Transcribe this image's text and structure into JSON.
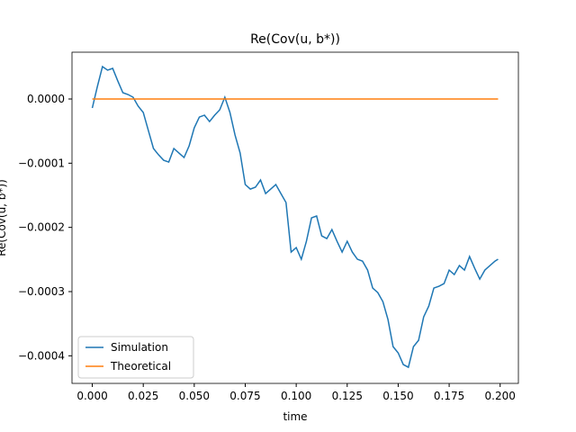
{
  "chart_data": {
    "type": "line",
    "title": "Re(Cov(u, b*))",
    "x_label": "time",
    "y_label": "Re(Cov(u, b*))",
    "xlim": [
      -0.00995,
      0.20895
    ],
    "ylim": [
      -0.000443,
      7.29e-05
    ],
    "xticks": [
      {
        "value": 0,
        "label": "0.000"
      },
      0.025,
      {
        "value": 0.05,
        "label": "0.050"
      },
      0.075,
      {
        "value": 0.1,
        "label": "0.100"
      },
      0.125,
      {
        "value": 0.15,
        "label": "0.150"
      },
      0.175,
      {
        "value": 0.2,
        "label": "0.200"
      }
    ],
    "yticks": [
      {
        "value": 0,
        "label": "0.0000"
      },
      {
        "value": -0.0001,
        "label": "−0.0001"
      },
      {
        "value": -0.0002,
        "label": "−0.0002"
      },
      {
        "value": -0.0003,
        "label": "−0.0003"
      },
      {
        "value": -0.0004,
        "label": "−0.0004"
      }
    ],
    "legend": "lower left",
    "series": [
      {
        "name": "Simulation",
        "color": "#1f77b4",
        "x": [
          0,
          0.0025,
          0.005,
          0.0075,
          0.01,
          0.0125,
          0.015,
          0.0175,
          0.02,
          0.0225,
          0.025,
          0.0275,
          0.03,
          0.0325,
          0.035,
          0.0375,
          0.04,
          0.0425,
          0.045,
          0.0475,
          0.05,
          0.0525,
          0.055,
          0.0575,
          0.06,
          0.0625,
          0.065,
          0.0675,
          0.07,
          0.0725,
          0.075,
          0.0775,
          0.08,
          0.0825,
          0.085,
          0.0875,
          0.09,
          0.0925,
          0.095,
          0.0975,
          0.1,
          0.1025,
          0.105,
          0.1075,
          0.11,
          0.1125,
          0.115,
          0.1175,
          0.12,
          0.1225,
          0.125,
          0.1275,
          0.13,
          0.1325,
          0.135,
          0.1375,
          0.14,
          0.1425,
          0.145,
          0.1475,
          0.15,
          0.1525,
          0.155,
          0.1575,
          0.16,
          0.1625,
          0.165,
          0.1675,
          0.17,
          0.1725,
          0.175,
          0.1775,
          0.18,
          0.1825,
          0.185,
          0.1875,
          0.19,
          0.1925,
          0.195,
          0.1975,
          0.199
        ],
        "values": [
          -1.4e-05,
          1.96e-05,
          5.05e-05,
          4.49e-05,
          4.77e-05,
          2.81e-05,
          9.8e-06,
          7e-06,
          2.8e-06,
          -1.12e-05,
          -2.1e-05,
          -4.91e-05,
          -7.71e-05,
          -8.7e-05,
          -9.54e-05,
          -9.82e-05,
          -7.71e-05,
          -8.42e-05,
          -9.12e-05,
          -7.29e-05,
          -4.49e-05,
          -2.81e-05,
          -2.52e-05,
          -3.51e-05,
          -2.52e-05,
          -1.68e-05,
          2.8e-06,
          -2.1e-05,
          -5.61e-05,
          -8.42e-05,
          -0.0001332,
          -0.0001403,
          -0.0001374,
          -0.0001262,
          -0.0001473,
          -0.0001403,
          -0.0001332,
          -0.0001473,
          -0.0001613,
          -0.0002384,
          -0.0002314,
          -0.0002496,
          -0.0002216,
          -0.0001851,
          -0.0001823,
          -0.0002132,
          -0.0002174,
          -0.0002034,
          -0.0002216,
          -0.0002384,
          -0.0002216,
          -0.0002384,
          -0.0002496,
          -0.0002525,
          -0.0002665,
          -0.0002945,
          -0.0003015,
          -0.0003156,
          -0.0003436,
          -0.0003857,
          -0.0003955,
          -0.0004137,
          -0.0004179,
          -0.0003857,
          -0.0003759,
          -0.0003394,
          -0.0003226,
          -0.0002945,
          -0.0002917,
          -0.0002875,
          -0.0002665,
          -0.0002735,
          -0.0002595,
          -0.0002665,
          -0.0002454,
          -0.0002637,
          -0.0002805,
          -0.0002665,
          -0.0002595,
          -0.0002525,
          -0.0002496
        ]
      },
      {
        "name": "Theoretical",
        "color": "#ff7f0e",
        "x": [
          0,
          0.199
        ],
        "values": [
          0,
          0
        ]
      }
    ]
  }
}
